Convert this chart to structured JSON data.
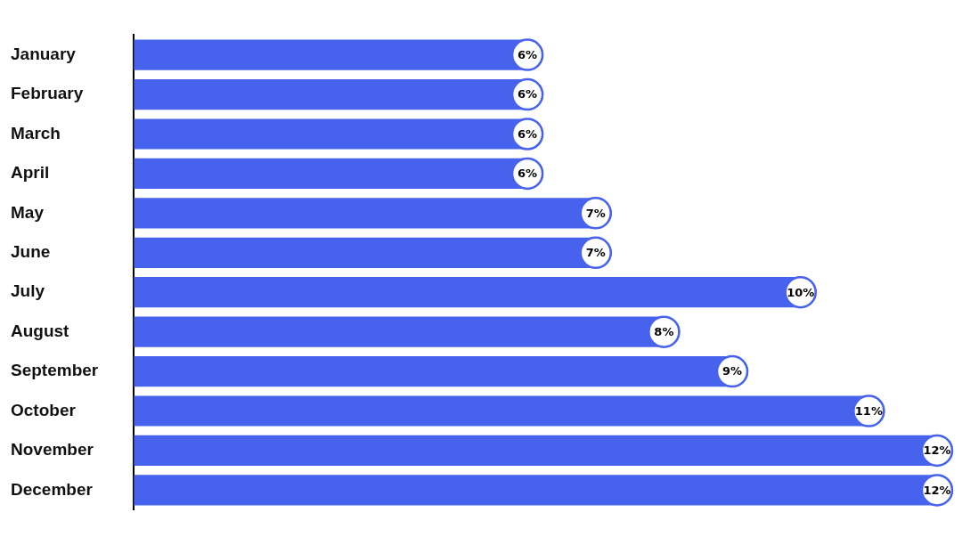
{
  "chart_data": {
    "type": "bar",
    "orientation": "horizontal",
    "categories": [
      "January",
      "February",
      "March",
      "April",
      "May",
      "June",
      "July",
      "August",
      "September",
      "October",
      "November",
      "December"
    ],
    "series": [
      {
        "color": "#4763ed",
        "values": [
          6,
          6,
          6,
          6,
          7,
          7,
          10,
          8,
          9,
          11,
          12,
          12
        ],
        "value_labels": [
          "6%",
          "6%",
          "6%",
          "6%",
          "7%",
          "7%",
          "10%",
          "8%",
          "9%",
          "11%",
          "12%",
          "12%"
        ]
      }
    ],
    "grid": false,
    "legend": false,
    "tick_labels": "y"
  }
}
